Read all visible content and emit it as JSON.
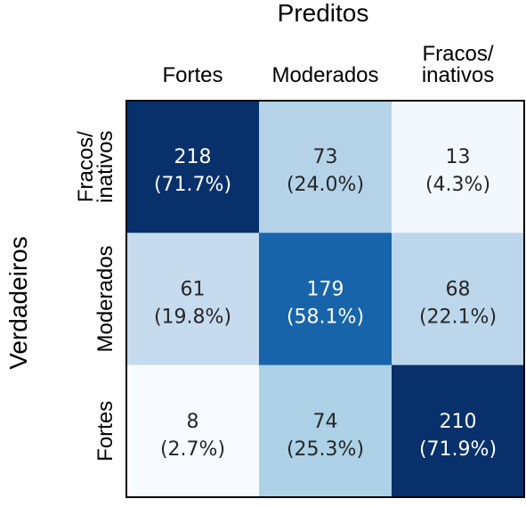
{
  "chart_data": {
    "type": "heatmap",
    "title": "",
    "xlabel": "Preditos",
    "ylabel": "Verdadeiros",
    "x_categories": [
      [
        "Fortes"
      ],
      [
        "Moderados"
      ],
      [
        "Fracos/",
        "inativos"
      ]
    ],
    "y_categories": [
      [
        "Fracos/",
        "inativos"
      ],
      [
        "Moderados"
      ],
      [
        "Fortes"
      ]
    ],
    "cells": [
      [
        {
          "count": "218",
          "pct": "(71.7%)",
          "value": 71.7
        },
        {
          "count": "73",
          "pct": "(24.0%)",
          "value": 24.0
        },
        {
          "count": "13",
          "pct": "(4.3%)",
          "value": 4.3
        }
      ],
      [
        {
          "count": "61",
          "pct": "(19.8%)",
          "value": 19.8
        },
        {
          "count": "179",
          "pct": "(58.1%)",
          "value": 58.1
        },
        {
          "count": "68",
          "pct": "(22.1%)",
          "value": 22.1
        }
      ],
      [
        {
          "count": "8",
          "pct": "(2.7%)",
          "value": 2.7
        },
        {
          "count": "74",
          "pct": "(25.3%)",
          "value": 25.3
        },
        {
          "count": "210",
          "pct": "(71.9%)",
          "value": 71.9
        }
      ]
    ],
    "colormap": "Blues",
    "grid": false,
    "legend": "none"
  }
}
